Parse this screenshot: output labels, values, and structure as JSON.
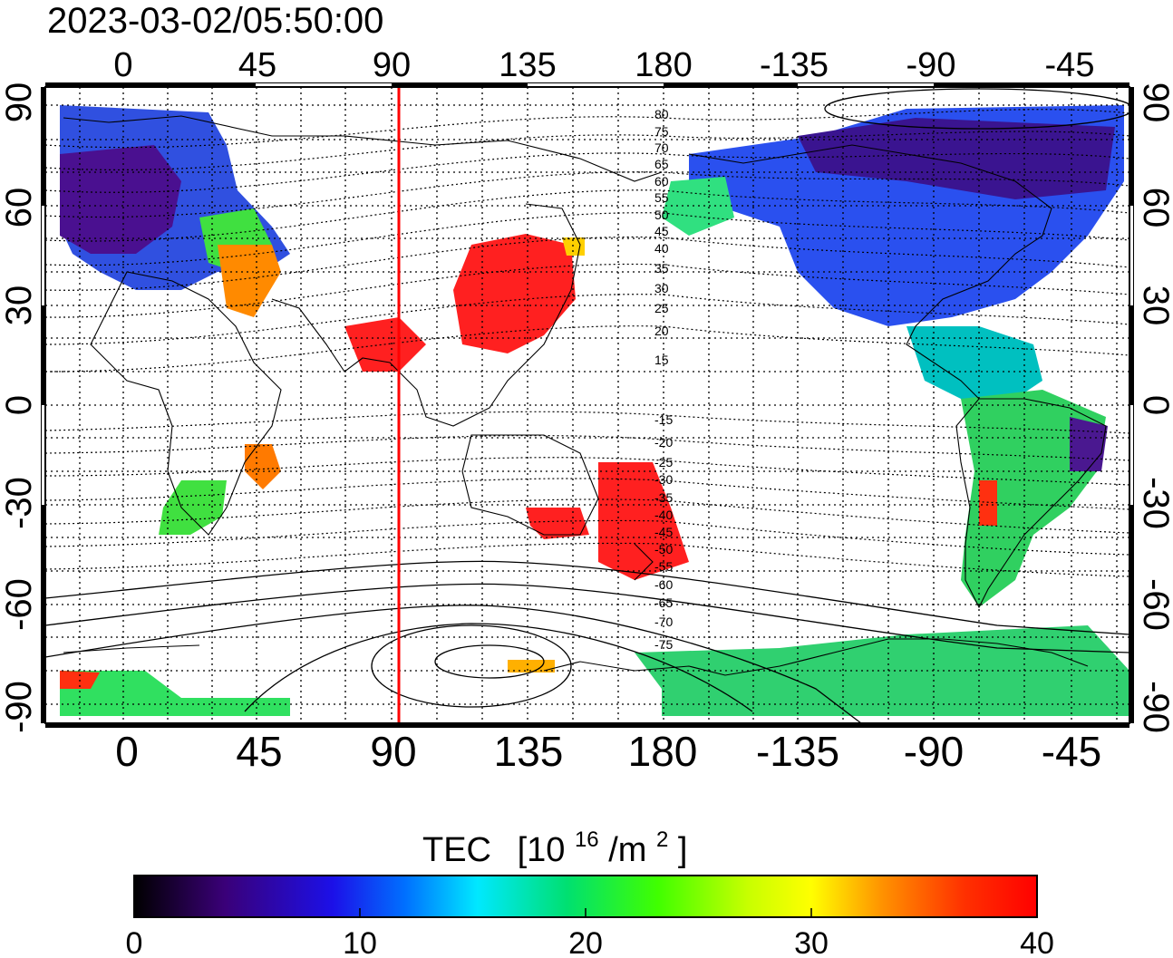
{
  "timestamp": "2023-03-02/05:50:00",
  "top_lon_labels": [
    "0",
    "45",
    "90",
    "135",
    "180",
    "-135",
    "-90",
    "-45"
  ],
  "bottom_lon_labels": [
    "0",
    "45",
    "90",
    "135",
    "180",
    "-135",
    "-90",
    "-45"
  ],
  "left_lat_labels": [
    "90",
    "60",
    "30",
    "0",
    "-30",
    "-60",
    "-90"
  ],
  "right_lat_labels": [
    "90",
    "60",
    "30",
    "0",
    "-30",
    "-60",
    "-90"
  ],
  "geomagnetic_contour_labels": [
    "80",
    "75",
    "70",
    "65",
    "60",
    "55",
    "50",
    "45",
    "40",
    "35",
    "30",
    "25",
    "20",
    "15",
    "-15",
    "-20",
    "-25",
    "-30",
    "-35",
    "-40",
    "-45",
    "-50",
    "-55",
    "-60",
    "-65",
    "-70",
    "-75"
  ],
  "colorbar": {
    "title": "TEC",
    "unit_prefix": "[10",
    "unit_exponent": "16",
    "unit_mid": "/m",
    "unit_power": "2",
    "unit_suffix": "]",
    "tick_labels": [
      "0",
      "10",
      "20",
      "30",
      "40"
    ]
  },
  "map": {
    "lon_range": [
      -20,
      345
    ],
    "lat_range": [
      -95,
      95
    ],
    "terminator_lon": 93
  },
  "colors": {
    "terminator": "#ff0000",
    "colorbar_stops": [
      "#000000",
      "#3a0078",
      "#2020ff",
      "#0080ff",
      "#00ffff",
      "#00e060",
      "#40ff00",
      "#c0ff00",
      "#ffff00",
      "#ff9000",
      "#ff3000",
      "#ff0000"
    ]
  }
}
